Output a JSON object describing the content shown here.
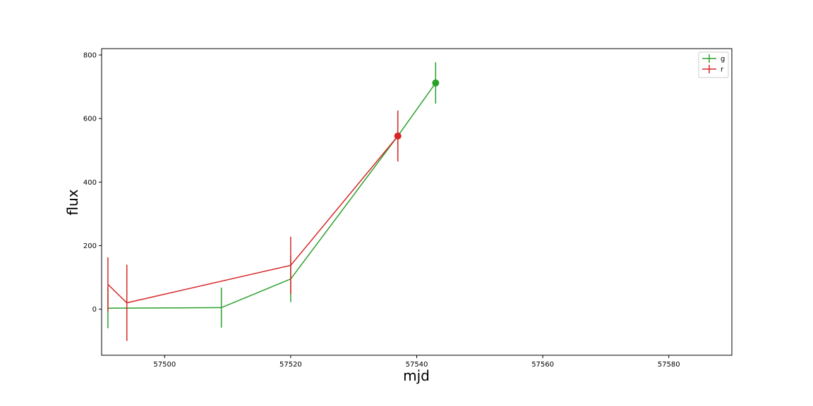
{
  "chart_data": {
    "type": "line",
    "title": "",
    "xlabel": "mjd",
    "ylabel": "flux",
    "xlim": [
      57490,
      57590
    ],
    "ylim": [
      -145,
      820
    ],
    "xticks": [
      57500,
      57520,
      57540,
      57560,
      57580
    ],
    "yticks": [
      0,
      200,
      400,
      600,
      800
    ],
    "grid": false,
    "legend_position": "top-right",
    "series": [
      {
        "name": "g",
        "color": "#2ca02c",
        "x": [
          57491,
          57509,
          57520,
          57537,
          57543
        ],
        "y": [
          3,
          5,
          95,
          545,
          712
        ],
        "yerr": [
          63,
          63,
          73,
          78,
          65
        ],
        "highlight_last": true
      },
      {
        "name": "r",
        "color": "#d62728",
        "x": [
          57491,
          57494,
          57520,
          57537
        ],
        "y": [
          78,
          20,
          138,
          545
        ],
        "yerr": [
          85,
          120,
          90,
          80
        ],
        "highlight_last": true
      }
    ]
  }
}
